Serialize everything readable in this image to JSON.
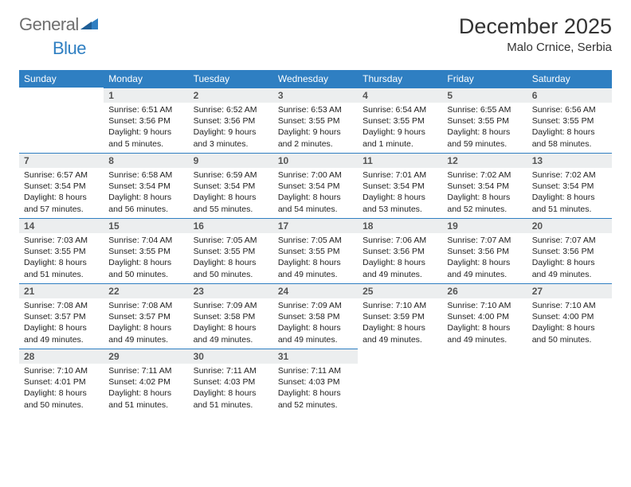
{
  "brand": {
    "part1": "General",
    "part2": "Blue"
  },
  "title": "December 2025",
  "location": "Malo Crnice, Serbia",
  "colors": {
    "header_bg": "#2f7fc2",
    "daynum_bg": "#eceeef",
    "rule": "#2f7fc2"
  },
  "weekdays": [
    "Sunday",
    "Monday",
    "Tuesday",
    "Wednesday",
    "Thursday",
    "Friday",
    "Saturday"
  ],
  "weeks": [
    [
      null,
      {
        "n": "1",
        "sr": "Sunrise: 6:51 AM",
        "ss": "Sunset: 3:56 PM",
        "dl": "Daylight: 9 hours and 5 minutes."
      },
      {
        "n": "2",
        "sr": "Sunrise: 6:52 AM",
        "ss": "Sunset: 3:56 PM",
        "dl": "Daylight: 9 hours and 3 minutes."
      },
      {
        "n": "3",
        "sr": "Sunrise: 6:53 AM",
        "ss": "Sunset: 3:55 PM",
        "dl": "Daylight: 9 hours and 2 minutes."
      },
      {
        "n": "4",
        "sr": "Sunrise: 6:54 AM",
        "ss": "Sunset: 3:55 PM",
        "dl": "Daylight: 9 hours and 1 minute."
      },
      {
        "n": "5",
        "sr": "Sunrise: 6:55 AM",
        "ss": "Sunset: 3:55 PM",
        "dl": "Daylight: 8 hours and 59 minutes."
      },
      {
        "n": "6",
        "sr": "Sunrise: 6:56 AM",
        "ss": "Sunset: 3:55 PM",
        "dl": "Daylight: 8 hours and 58 minutes."
      }
    ],
    [
      {
        "n": "7",
        "sr": "Sunrise: 6:57 AM",
        "ss": "Sunset: 3:54 PM",
        "dl": "Daylight: 8 hours and 57 minutes."
      },
      {
        "n": "8",
        "sr": "Sunrise: 6:58 AM",
        "ss": "Sunset: 3:54 PM",
        "dl": "Daylight: 8 hours and 56 minutes."
      },
      {
        "n": "9",
        "sr": "Sunrise: 6:59 AM",
        "ss": "Sunset: 3:54 PM",
        "dl": "Daylight: 8 hours and 55 minutes."
      },
      {
        "n": "10",
        "sr": "Sunrise: 7:00 AM",
        "ss": "Sunset: 3:54 PM",
        "dl": "Daylight: 8 hours and 54 minutes."
      },
      {
        "n": "11",
        "sr": "Sunrise: 7:01 AM",
        "ss": "Sunset: 3:54 PM",
        "dl": "Daylight: 8 hours and 53 minutes."
      },
      {
        "n": "12",
        "sr": "Sunrise: 7:02 AM",
        "ss": "Sunset: 3:54 PM",
        "dl": "Daylight: 8 hours and 52 minutes."
      },
      {
        "n": "13",
        "sr": "Sunrise: 7:02 AM",
        "ss": "Sunset: 3:54 PM",
        "dl": "Daylight: 8 hours and 51 minutes."
      }
    ],
    [
      {
        "n": "14",
        "sr": "Sunrise: 7:03 AM",
        "ss": "Sunset: 3:55 PM",
        "dl": "Daylight: 8 hours and 51 minutes."
      },
      {
        "n": "15",
        "sr": "Sunrise: 7:04 AM",
        "ss": "Sunset: 3:55 PM",
        "dl": "Daylight: 8 hours and 50 minutes."
      },
      {
        "n": "16",
        "sr": "Sunrise: 7:05 AM",
        "ss": "Sunset: 3:55 PM",
        "dl": "Daylight: 8 hours and 50 minutes."
      },
      {
        "n": "17",
        "sr": "Sunrise: 7:05 AM",
        "ss": "Sunset: 3:55 PM",
        "dl": "Daylight: 8 hours and 49 minutes."
      },
      {
        "n": "18",
        "sr": "Sunrise: 7:06 AM",
        "ss": "Sunset: 3:56 PM",
        "dl": "Daylight: 8 hours and 49 minutes."
      },
      {
        "n": "19",
        "sr": "Sunrise: 7:07 AM",
        "ss": "Sunset: 3:56 PM",
        "dl": "Daylight: 8 hours and 49 minutes."
      },
      {
        "n": "20",
        "sr": "Sunrise: 7:07 AM",
        "ss": "Sunset: 3:56 PM",
        "dl": "Daylight: 8 hours and 49 minutes."
      }
    ],
    [
      {
        "n": "21",
        "sr": "Sunrise: 7:08 AM",
        "ss": "Sunset: 3:57 PM",
        "dl": "Daylight: 8 hours and 49 minutes."
      },
      {
        "n": "22",
        "sr": "Sunrise: 7:08 AM",
        "ss": "Sunset: 3:57 PM",
        "dl": "Daylight: 8 hours and 49 minutes."
      },
      {
        "n": "23",
        "sr": "Sunrise: 7:09 AM",
        "ss": "Sunset: 3:58 PM",
        "dl": "Daylight: 8 hours and 49 minutes."
      },
      {
        "n": "24",
        "sr": "Sunrise: 7:09 AM",
        "ss": "Sunset: 3:58 PM",
        "dl": "Daylight: 8 hours and 49 minutes."
      },
      {
        "n": "25",
        "sr": "Sunrise: 7:10 AM",
        "ss": "Sunset: 3:59 PM",
        "dl": "Daylight: 8 hours and 49 minutes."
      },
      {
        "n": "26",
        "sr": "Sunrise: 7:10 AM",
        "ss": "Sunset: 4:00 PM",
        "dl": "Daylight: 8 hours and 49 minutes."
      },
      {
        "n": "27",
        "sr": "Sunrise: 7:10 AM",
        "ss": "Sunset: 4:00 PM",
        "dl": "Daylight: 8 hours and 50 minutes."
      }
    ],
    [
      {
        "n": "28",
        "sr": "Sunrise: 7:10 AM",
        "ss": "Sunset: 4:01 PM",
        "dl": "Daylight: 8 hours and 50 minutes."
      },
      {
        "n": "29",
        "sr": "Sunrise: 7:11 AM",
        "ss": "Sunset: 4:02 PM",
        "dl": "Daylight: 8 hours and 51 minutes."
      },
      {
        "n": "30",
        "sr": "Sunrise: 7:11 AM",
        "ss": "Sunset: 4:03 PM",
        "dl": "Daylight: 8 hours and 51 minutes."
      },
      {
        "n": "31",
        "sr": "Sunrise: 7:11 AM",
        "ss": "Sunset: 4:03 PM",
        "dl": "Daylight: 8 hours and 52 minutes."
      },
      null,
      null,
      null
    ]
  ]
}
